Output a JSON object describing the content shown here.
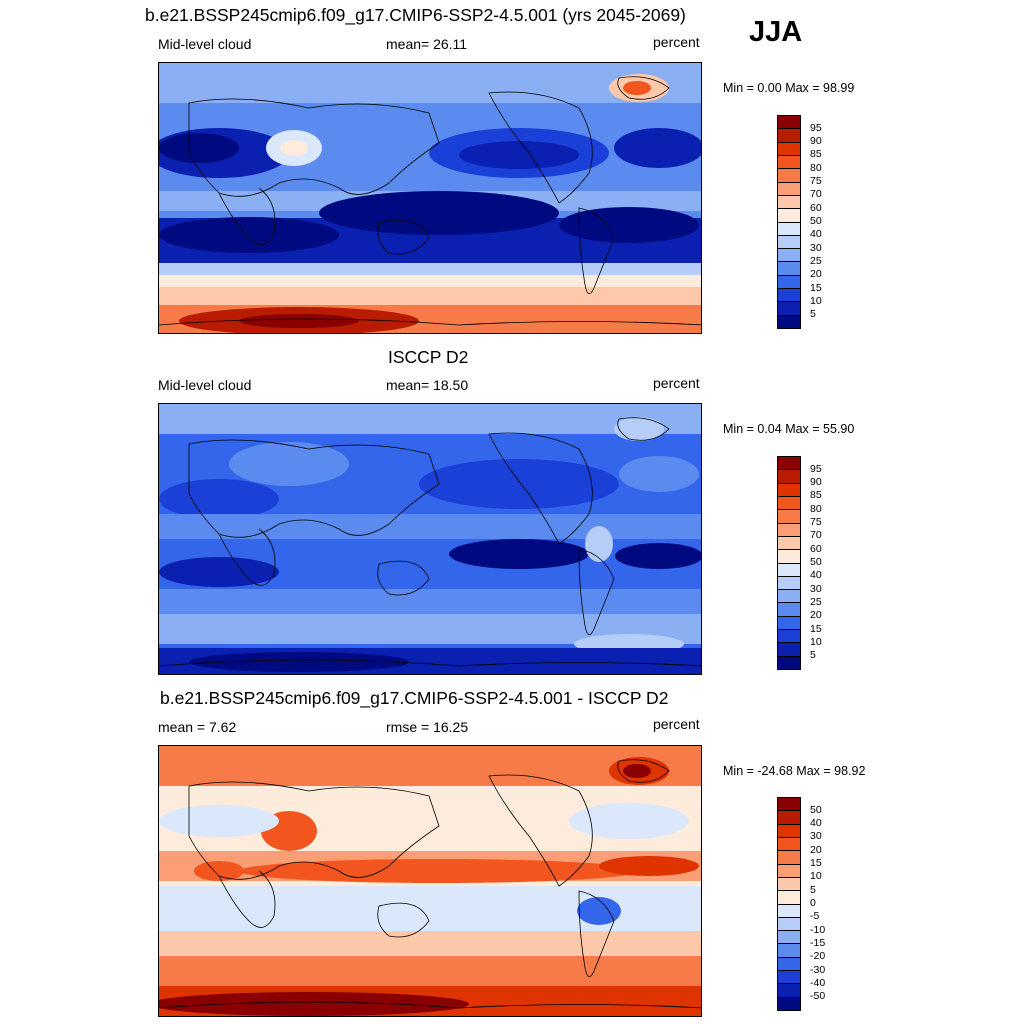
{
  "season": "JJA",
  "panels": [
    {
      "title": "b.e21.BSSP245cmip6.f09_g17.CMIP6-SSP2-4.5.001 (yrs 2045-2069)",
      "left_label": "Mid-level cloud",
      "center_label": "mean=  26.11",
      "right_label": "percent",
      "minmax": "Min =   0.00 Max =  98.99"
    },
    {
      "title": "ISCCP D2",
      "left_label": "Mid-level cloud",
      "center_label": "mean=  18.50",
      "right_label": "percent",
      "minmax": "Min =   0.04 Max =  55.90"
    },
    {
      "title": "b.e21.BSSP245cmip6.f09_g17.CMIP6-SSP2-4.5.001 - ISCCP D2",
      "left_label": "mean =   7.62",
      "center_label": "rmse =  16.25",
      "right_label": "percent",
      "minmax": "Min = -24.68 Max =  98.92"
    }
  ],
  "colorbars": {
    "absolute": {
      "levels": [
        "95",
        "90",
        "85",
        "80",
        "75",
        "70",
        "60",
        "50",
        "40",
        "30",
        "25",
        "20",
        "15",
        "10",
        "5"
      ],
      "colors": [
        "#8a0000",
        "#b81b00",
        "#df3300",
        "#f2551e",
        "#f77b48",
        "#fa9e76",
        "#fdc9aa",
        "#fdebdc",
        "#dbe8fb",
        "#b5cdf7",
        "#8aaff3",
        "#5c8bf0",
        "#3466ec",
        "#1a40d8",
        "#0a20b0",
        "#000a80"
      ]
    },
    "difference": {
      "levels": [
        "50",
        "40",
        "30",
        "20",
        "15",
        "10",
        "5",
        "0",
        "-5",
        "-10",
        "-15",
        "-20",
        "-30",
        "-40",
        "-50"
      ],
      "colors": [
        "#8a0000",
        "#b81b00",
        "#df3300",
        "#f2551e",
        "#f77b48",
        "#fa9e76",
        "#fdc9aa",
        "#fdebdc",
        "#dbe8fb",
        "#b5cdf7",
        "#8aaff3",
        "#5c8bf0",
        "#3466ec",
        "#1a40d8",
        "#0a20b0",
        "#000a80"
      ]
    }
  },
  "chart_data": [
    {
      "type": "heatmap",
      "title": "b.e21.BSSP245cmip6.f09_g17.CMIP6-SSP2-4.5.001 (yrs 2045-2069)",
      "variable": "Mid-level cloud",
      "units": "percent",
      "mean": 26.11,
      "min": 0.0,
      "max": 98.99,
      "contour_levels": [
        5,
        10,
        15,
        20,
        25,
        30,
        40,
        50,
        60,
        70,
        75,
        80,
        85,
        90,
        95
      ]
    },
    {
      "type": "heatmap",
      "title": "ISCCP D2",
      "variable": "Mid-level cloud",
      "units": "percent",
      "mean": 18.5,
      "min": 0.04,
      "max": 55.9,
      "contour_levels": [
        5,
        10,
        15,
        20,
        25,
        30,
        40,
        50,
        60,
        70,
        75,
        80,
        85,
        90,
        95
      ]
    },
    {
      "type": "heatmap",
      "title": "b.e21.BSSP245cmip6.f09_g17.CMIP6-SSP2-4.5.001 - ISCCP D2",
      "units": "percent",
      "mean": 7.62,
      "rmse": 16.25,
      "min": -24.68,
      "max": 98.92,
      "contour_levels": [
        -50,
        -40,
        -30,
        -20,
        -15,
        -10,
        -5,
        0,
        5,
        10,
        15,
        20,
        30,
        40,
        50
      ]
    }
  ]
}
